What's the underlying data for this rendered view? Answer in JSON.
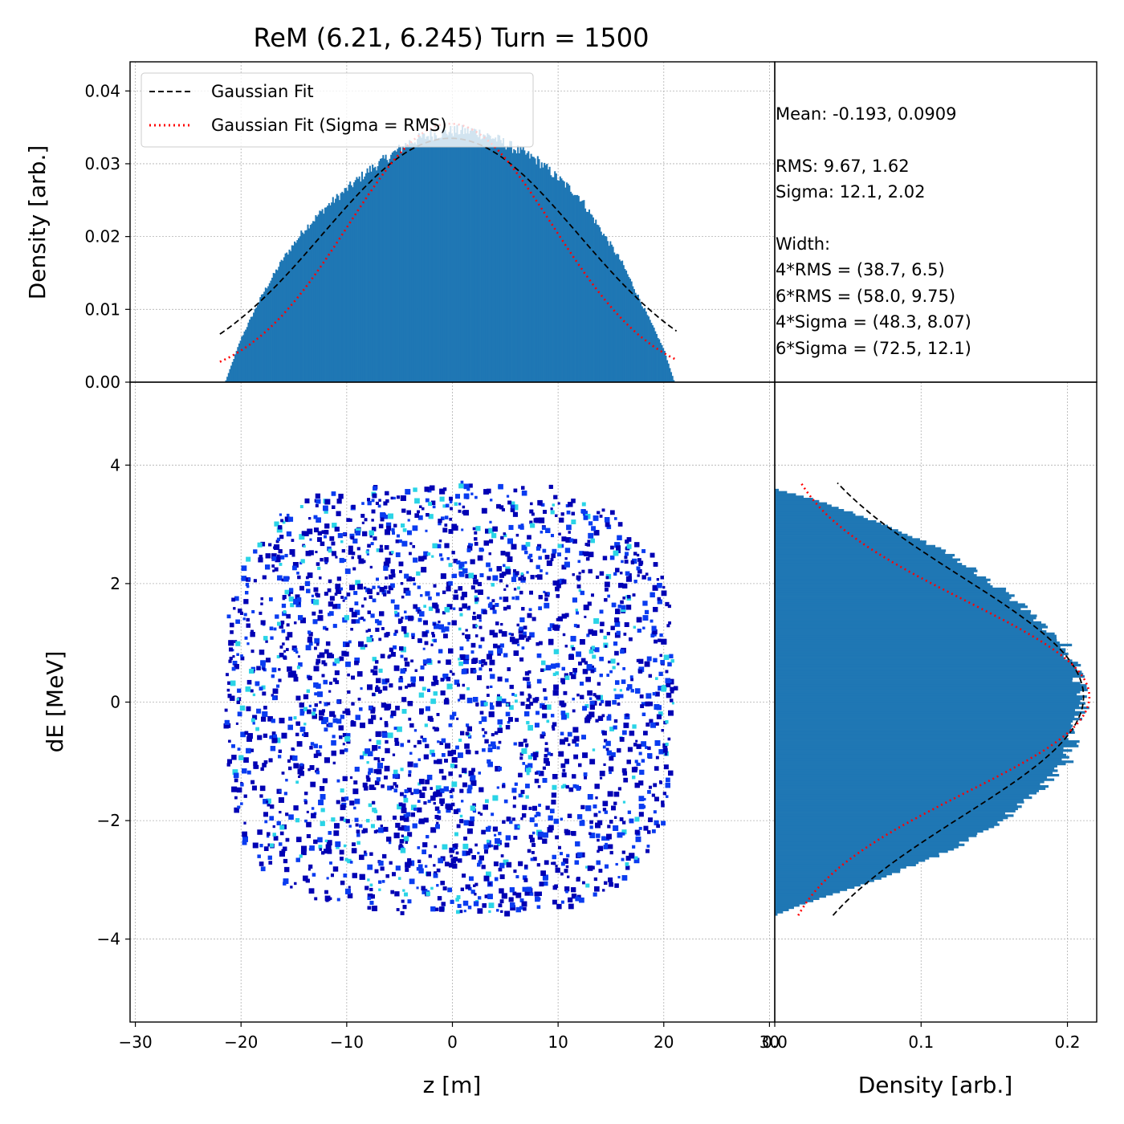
{
  "title": "ReM (6.21, 6.245) Turn = 1500",
  "colors": {
    "hist": "#1f77b4",
    "gauss_fit": "#000000",
    "gauss_rms": "#ff0000",
    "cloud_dark": "#0000b4",
    "cloud_mid": "#0a3cf0",
    "cloud_light": "#2ad4e6"
  },
  "legend": {
    "placement": "upper-left of top panel",
    "entries": [
      {
        "label": "Gaussian Fit",
        "style": "dashed black"
      },
      {
        "label": "Gaussian Fit (Sigma = RMS)",
        "style": "dotted red"
      }
    ]
  },
  "stats": {
    "mean": "Mean: -0.193, 0.0909",
    "rms": "RMS: 9.67, 1.62",
    "sigma": "Sigma: 12.1, 2.02",
    "width_header": "Width:",
    "rms4": "4*RMS = (38.7, 6.5)",
    "rms6": "6*RMS = (58.0, 9.75)",
    "sigma4": "4*Sigma = (48.3, 8.07)",
    "sigma6": "6*Sigma = (72.5, 12.1)"
  },
  "chart_data": [
    {
      "panel": "top",
      "type": "bar",
      "description_source": "histogram of z",
      "ylabel": "Density [arb.]",
      "xlim": [
        -30.5,
        30.5
      ],
      "ylim": [
        0,
        0.044
      ],
      "ytick_labels": [
        "0.00",
        "0.01",
        "0.02",
        "0.03",
        "0.04"
      ],
      "ytick_values": [
        0,
        0.01,
        0.02,
        0.03,
        0.04
      ],
      "x": [
        -21.5,
        -20,
        -18,
        -16,
        -14,
        -12,
        -10,
        -8,
        -6,
        -4,
        -2,
        0,
        2,
        4,
        6,
        8,
        10,
        12,
        14,
        16,
        18,
        20,
        21
      ],
      "values": [
        0.0,
        0.006,
        0.012,
        0.017,
        0.021,
        0.024,
        0.0265,
        0.029,
        0.031,
        0.033,
        0.034,
        0.0345,
        0.0345,
        0.0335,
        0.032,
        0.0305,
        0.028,
        0.0255,
        0.021,
        0.0165,
        0.0105,
        0.0045,
        0.0
      ],
      "series": [
        {
          "name": "Gaussian Fit",
          "mu": -0.193,
          "sigma": 12.1,
          "amplitude": 0.0335,
          "x_range": [
            -22,
            21.2
          ]
        },
        {
          "name": "Gaussian Fit (Sigma = RMS)",
          "mu": -0.193,
          "sigma": 9.67,
          "amplitude": 0.0355,
          "x_range": [
            -22,
            21.2
          ]
        }
      ],
      "grid": true
    },
    {
      "panel": "main",
      "type": "heatmap",
      "description_source": "2D density of particles",
      "xlabel": "z [m]",
      "ylabel": "dE [MeV]",
      "xlim": [
        -30.5,
        30.5
      ],
      "ylim": [
        -5.4,
        5.4
      ],
      "xtick_labels": [
        "−30",
        "−20",
        "−10",
        "0",
        "10",
        "20",
        "30"
      ],
      "xtick_values": [
        -30,
        -20,
        -10,
        0,
        10,
        20,
        30
      ],
      "ytick_labels": [
        "−4",
        "−2",
        "0",
        "2",
        "4"
      ],
      "ytick_values": [
        -4,
        -2,
        0,
        2,
        4
      ],
      "distribution": {
        "z_extent": [
          -21.5,
          21
        ],
        "dE_extent": [
          -3.6,
          3.7
        ]
      },
      "grid": true
    },
    {
      "panel": "right",
      "type": "bar",
      "orientation": "horizontal",
      "description_source": "histogram of dE",
      "xlabel": "Density [arb.]",
      "xlim": [
        0,
        0.22
      ],
      "xtick_labels": [
        "0.0",
        "0.1",
        "0.2"
      ],
      "xtick_values": [
        0,
        0.1,
        0.2
      ],
      "y": [
        -3.6,
        -3.4,
        -3.0,
        -2.5,
        -2.0,
        -1.5,
        -1.0,
        -0.5,
        0,
        0.5,
        1.0,
        1.5,
        2.0,
        2.5,
        3.0,
        3.4,
        3.6
      ],
      "values": [
        0.0,
        0.02,
        0.07,
        0.12,
        0.155,
        0.18,
        0.2,
        0.205,
        0.212,
        0.207,
        0.198,
        0.175,
        0.15,
        0.12,
        0.075,
        0.03,
        0.0
      ],
      "series": [
        {
          "name": "Gaussian Fit",
          "mu": 0.0909,
          "sigma": 2.02,
          "amplitude": 0.211,
          "offset": 0.0,
          "y_range": [
            -3.6,
            3.7
          ]
        },
        {
          "name": "Gaussian Fit (Sigma = RMS)",
          "mu": 0.0909,
          "sigma": 1.62,
          "amplitude": 0.215,
          "offset": 0.0,
          "y_range": [
            -3.6,
            3.7
          ]
        }
      ],
      "grid": true
    }
  ]
}
